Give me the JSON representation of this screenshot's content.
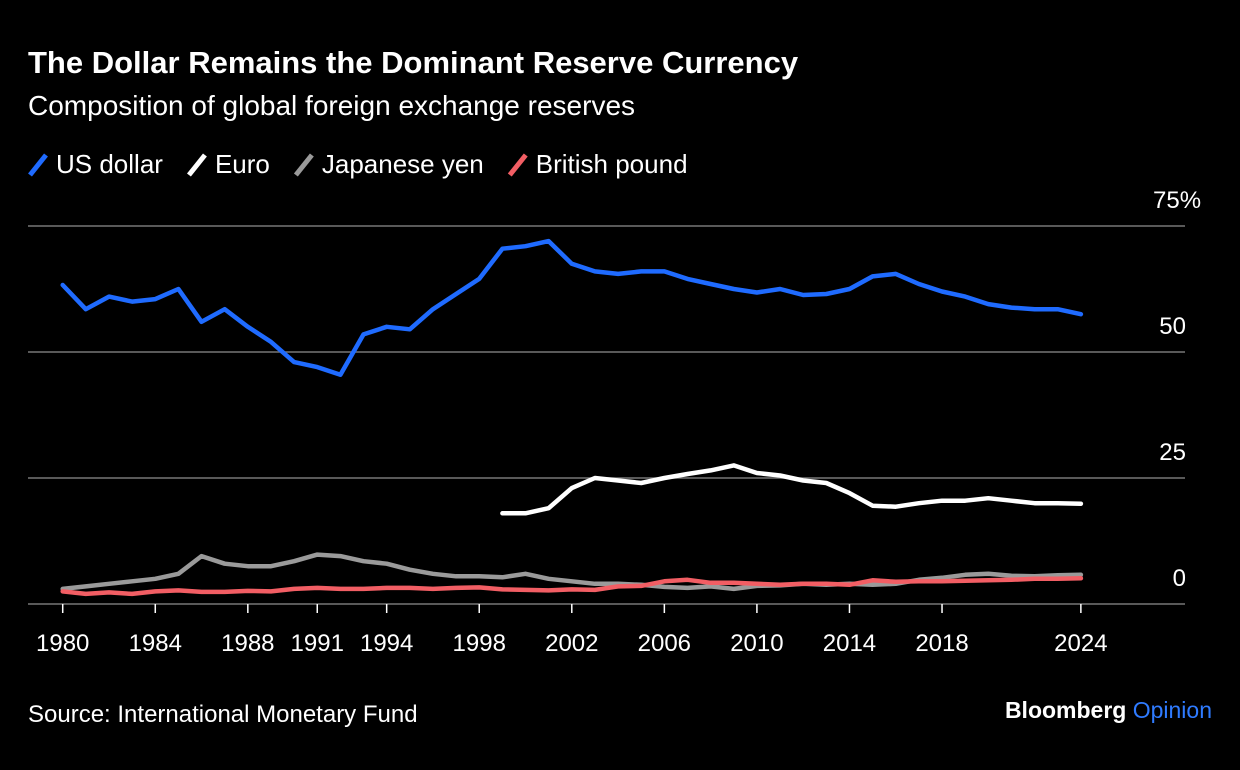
{
  "chart_data": {
    "type": "line",
    "title": "The Dollar Remains the Dominant Reserve Currency",
    "subtitle": "Composition of global foreign exchange reserves",
    "source": "Source: International Monetary Fund",
    "brand": [
      "Bloomberg",
      "Opinion"
    ],
    "x": [
      1980,
      1981,
      1982,
      1983,
      1984,
      1985,
      1986,
      1987,
      1988,
      1989,
      1990,
      1991,
      1992,
      1993,
      1994,
      1995,
      1996,
      1997,
      1998,
      1999,
      2000,
      2001,
      2002,
      2003,
      2004,
      2005,
      2006,
      2007,
      2008,
      2009,
      2010,
      2011,
      2012,
      2013,
      2014,
      2015,
      2016,
      2017,
      2018,
      2019,
      2020,
      2021,
      2022,
      2023,
      2024
    ],
    "series": [
      {
        "name": "US dollar",
        "color": "#1f6bff",
        "values": [
          63.3,
          58.5,
          61,
          60,
          60.5,
          62.5,
          56,
          58.5,
          55,
          52,
          48,
          47,
          45.5,
          53.5,
          55,
          54.5,
          58.5,
          61.5,
          64.5,
          70.5,
          71,
          72,
          67.5,
          66,
          65.5,
          66,
          66,
          64.5,
          63.5,
          62.5,
          61.8,
          62.5,
          61.3,
          61.5,
          62.5,
          65,
          65.5,
          63.5,
          62,
          61,
          59.5,
          58.8,
          58.5,
          58.5,
          57.5
        ]
      },
      {
        "name": "Euro",
        "color": "#ffffff",
        "values": [
          null,
          null,
          null,
          null,
          null,
          null,
          null,
          null,
          null,
          null,
          null,
          null,
          null,
          null,
          null,
          null,
          null,
          null,
          null,
          18,
          18,
          19,
          23,
          25,
          24.5,
          24,
          25,
          25.8,
          26.5,
          27.5,
          26,
          25.5,
          24.5,
          24,
          22,
          19.5,
          19.3,
          20,
          20.5,
          20.5,
          21,
          20.5,
          20,
          20,
          19.9
        ]
      },
      {
        "name": "Japanese yen",
        "color": "#9a9a9a",
        "values": [
          3,
          3.5,
          4,
          4.5,
          5,
          6,
          9.5,
          8,
          7.5,
          7.5,
          8.5,
          9.8,
          9.5,
          8.5,
          8,
          6.8,
          6,
          5.5,
          5.5,
          5.3,
          6,
          5,
          4.5,
          4,
          4,
          3.8,
          3.4,
          3.2,
          3.5,
          3,
          3.6,
          3.7,
          4,
          3.8,
          4,
          3.8,
          4,
          4.8,
          5.2,
          5.8,
          6,
          5.6,
          5.5,
          5.7,
          5.8
        ]
      },
      {
        "name": "British pound",
        "color": "#f25e64",
        "values": [
          2.5,
          2,
          2.3,
          2,
          2.5,
          2.7,
          2.4,
          2.4,
          2.6,
          2.5,
          3,
          3.2,
          3,
          3,
          3.2,
          3.2,
          3,
          3.2,
          3.3,
          2.9,
          2.8,
          2.7,
          2.9,
          2.8,
          3.5,
          3.6,
          4.5,
          4.8,
          4.2,
          4.2,
          4,
          3.8,
          4,
          4,
          3.8,
          4.7,
          4.4,
          4.5,
          4.5,
          4.6,
          4.7,
          4.8,
          5,
          5,
          5.1
        ]
      }
    ],
    "xlim": [
      1978.5,
      2028.5
    ],
    "xticks": [
      1980,
      1984,
      1988,
      1991,
      1994,
      1998,
      2002,
      2006,
      2010,
      2014,
      2018,
      2024
    ],
    "ylim": [
      0,
      75
    ],
    "yticks": [
      0,
      25,
      50,
      {
        "value": 75,
        "label": "75%"
      }
    ],
    "grid": true
  }
}
